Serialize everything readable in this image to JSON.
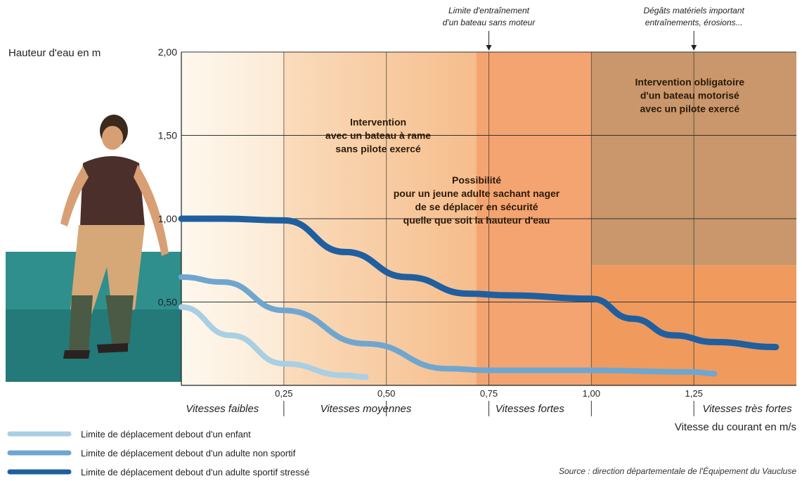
{
  "chart_data": {
    "type": "line",
    "ylabel": "Hauteur d'eau en m",
    "xlabel": "Vitesse du courant en m/s",
    "ylim": [
      0,
      2.0
    ],
    "xlim": [
      0,
      1.5
    ],
    "y_ticks": [
      "0,50",
      "1,00",
      "1,50",
      "2,00"
    ],
    "y_tick_values": [
      0.5,
      1.0,
      1.5,
      2.0
    ],
    "x_ticks": [
      "0,25",
      "0,50",
      "0,75",
      "1,00",
      "1,25"
    ],
    "x_tick_values": [
      0.25,
      0.5,
      0.75,
      1.0,
      1.25
    ],
    "grid": true,
    "zones": [
      {
        "label": "Vitesses faibles",
        "from": 0,
        "to": 0.25,
        "color": "#fdf1e0"
      },
      {
        "label": "Vitesses moyennes",
        "from": 0.25,
        "to": 0.72,
        "color": "#f8c79a"
      },
      {
        "label": "Vitesses fortes",
        "from": 0.72,
        "to": 1.0,
        "color": "#f3a46c"
      },
      {
        "label": "Vitesses très fortes",
        "from": 1.0,
        "to": 1.5,
        "color": "#c8966a"
      }
    ],
    "series": [
      {
        "name": "Limite de déplacement debout d'un enfant",
        "color": "#a9cfe3",
        "x": [
          0,
          0.12,
          0.25,
          0.4,
          0.45
        ],
        "y": [
          0.47,
          0.3,
          0.13,
          0.06,
          0.05
        ]
      },
      {
        "name": "Limite de déplacement debout d'un adulte non sportif",
        "color": "#6fa6cf",
        "x": [
          0,
          0.1,
          0.25,
          0.45,
          0.65,
          0.75,
          1.0,
          1.25,
          1.3
        ],
        "y": [
          0.65,
          0.62,
          0.45,
          0.25,
          0.1,
          0.09,
          0.09,
          0.08,
          0.07
        ]
      },
      {
        "name": "Limite de déplacement debout d'un adulte sportif stressé",
        "color": "#1f5f9f",
        "x": [
          0,
          0.1,
          0.25,
          0.4,
          0.55,
          0.7,
          0.8,
          1.0,
          1.1,
          1.2,
          1.3,
          1.45
        ],
        "y": [
          1.0,
          1.0,
          0.99,
          0.8,
          0.65,
          0.55,
          0.54,
          0.52,
          0.4,
          0.3,
          0.26,
          0.23
        ]
      }
    ],
    "annotations": [
      {
        "lines": [
          "Intervention",
          "avec un bateau à rame",
          "sans pilote exercé"
        ],
        "x": 0.48,
        "y": 1.56
      },
      {
        "lines": [
          "Possibilité",
          "pour un jeune adulte sachant nager",
          "de se déplacer en sécurité",
          "quelle que soit la hauteur d'eau"
        ],
        "x": 0.72,
        "y": 1.21
      },
      {
        "lines": [
          "Intervention obligatoire",
          "d'un bateau motorisé",
          "avec un pilote exercé"
        ],
        "x": 1.24,
        "y": 1.8
      }
    ],
    "top_annotations": [
      {
        "lines": [
          "Limite d'entraînement",
          "d'un bateau sans moteur"
        ],
        "x": 0.75
      },
      {
        "lines": [
          "Dégâts matériels important",
          "entraînements, érosions..."
        ],
        "x": 1.25
      }
    ]
  },
  "legend": [
    "Limite de déplacement debout d'un enfant",
    "Limite de déplacement debout d'un adulte non sportif",
    "Limite de déplacement debout d'un adulte sportif stressé"
  ],
  "source": "Source : direction départementale de l'Équipement du Vaucluse"
}
